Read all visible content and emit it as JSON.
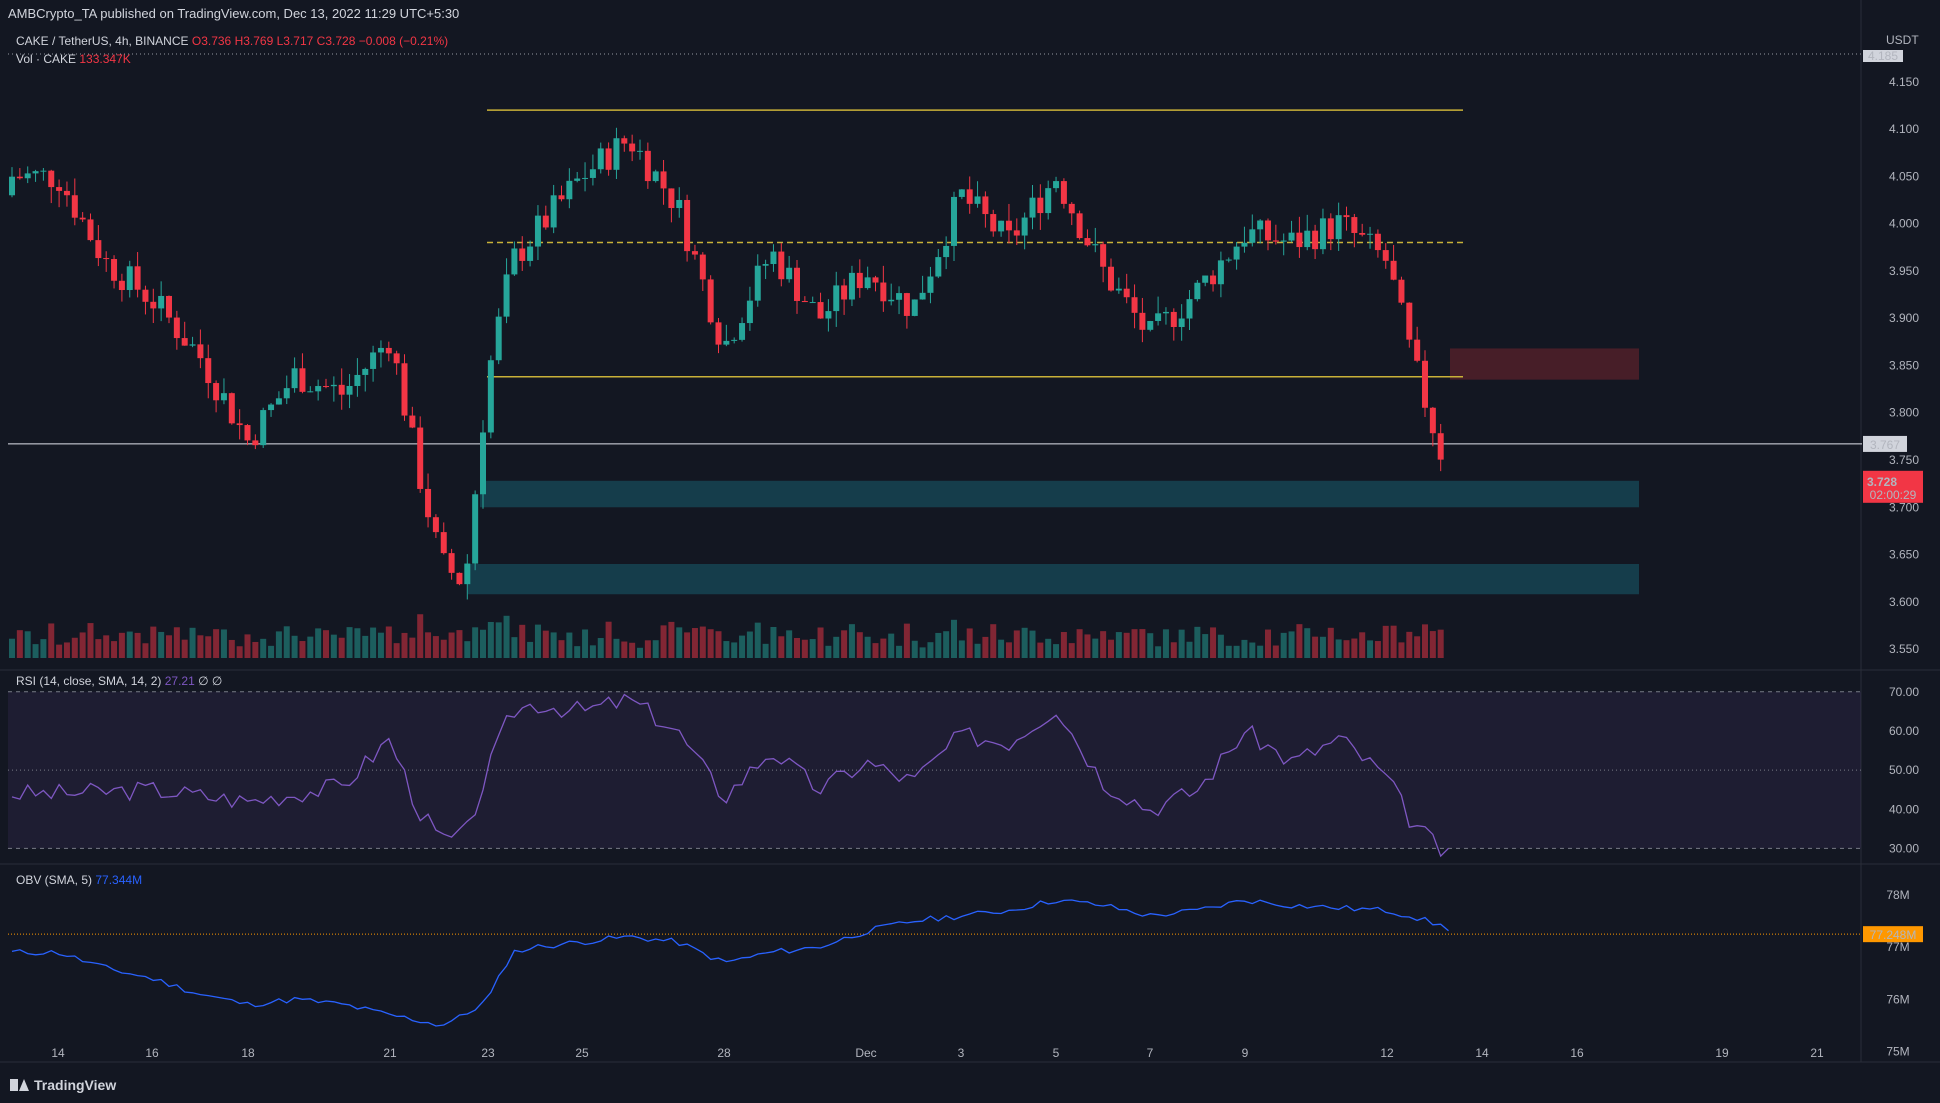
{
  "header": {
    "publisher": "AMBCrypto_TA published on TradingView.com, Dec 13, 2022 11:29 UTC+5:30"
  },
  "symbol": {
    "pair": "CAKE / TetherUS, 4h, BINANCE",
    "open": "O3.736",
    "high": "H3.769",
    "low": "L3.717",
    "close": "C3.728",
    "change": "−0.008 (−0.21%)"
  },
  "volume": {
    "label": "Vol · CAKE",
    "value": "133.347K"
  },
  "rsi": {
    "label": "RSI (14, close, SMA, 14, 2)",
    "value": "27.21",
    "extra": "∅ ∅"
  },
  "obv": {
    "label": "OBV (SMA, 5)",
    "value": "77.344M"
  },
  "footer": {
    "brand": "TradingView"
  },
  "colors": {
    "up": "#26a69a",
    "down": "#f23645",
    "bg": "#131722",
    "yellow": "#c9b138",
    "zone_teal": "#164452",
    "zone_red": "#4a1f29",
    "rsi": "#7e57c2",
    "obv": "#2962ff"
  },
  "chart_data": [
    {
      "type": "candlestick",
      "title": "CAKE / TetherUS, 4h, BINANCE",
      "currency": "USDT",
      "x_ticks": [
        "14",
        "16",
        "18",
        "21",
        "23",
        "25",
        "28",
        "Dec",
        "3",
        "5",
        "7",
        "9",
        "12",
        "14",
        "16",
        "19",
        "21"
      ],
      "y_ticks": [
        "4.150",
        "4.100",
        "4.050",
        "4.000",
        "3.950",
        "3.900",
        "3.850",
        "3.800",
        "3.750",
        "3.700",
        "3.650",
        "3.600",
        "3.550"
      ],
      "ylim": [
        3.53,
        4.19
      ],
      "price_labels": {
        "top": "4.185",
        "level": "3.767",
        "last": "3.728",
        "countdown": "02:00:29"
      },
      "levels": {
        "white_line": 3.767,
        "range_high": 4.12,
        "range_mid": 3.98,
        "range_low": 3.838
      },
      "zones": [
        {
          "name": "bearish order block",
          "low": 3.835,
          "high": 3.868
        },
        {
          "name": "support zone 1",
          "low": 3.7,
          "high": 3.728
        },
        {
          "name": "support zone 2",
          "low": 3.608,
          "high": 3.64
        }
      ],
      "anchors": [
        {
          "x": "14",
          "price": 4.05
        },
        {
          "x": "15",
          "price": 3.96
        },
        {
          "x": "16",
          "price": 3.92
        },
        {
          "x": "17",
          "price": 3.86
        },
        {
          "x": "18",
          "price": 3.77
        },
        {
          "x": "19",
          "price": 3.84
        },
        {
          "x": "20",
          "price": 3.82
        },
        {
          "x": "21",
          "price": 3.88
        },
        {
          "x": "21.5",
          "price": 3.74
        },
        {
          "x": "22",
          "price": 3.64
        },
        {
          "x": "22.5",
          "price": 3.62
        },
        {
          "x": "23",
          "price": 3.84
        },
        {
          "x": "23.5",
          "price": 3.96
        },
        {
          "x": "24",
          "price": 3.99
        },
        {
          "x": "25",
          "price": 4.05
        },
        {
          "x": "26",
          "price": 4.09
        },
        {
          "x": "27",
          "price": 4.02
        },
        {
          "x": "28",
          "price": 3.87
        },
        {
          "x": "29",
          "price": 3.97
        },
        {
          "x": "30",
          "price": 3.9
        },
        {
          "x": "Dec 1",
          "price": 3.95
        },
        {
          "x": "2",
          "price": 3.91
        },
        {
          "x": "3",
          "price": 4.03
        },
        {
          "x": "4",
          "price": 3.98
        },
        {
          "x": "5",
          "price": 4.05
        },
        {
          "x": "6",
          "price": 3.95
        },
        {
          "x": "7",
          "price": 3.88
        },
        {
          "x": "8",
          "price": 3.93
        },
        {
          "x": "9",
          "price": 3.99
        },
        {
          "x": "10",
          "price": 3.98
        },
        {
          "x": "11",
          "price": 4.0
        },
        {
          "x": "12",
          "price": 3.96
        },
        {
          "x": "12.5",
          "price": 3.86
        },
        {
          "x": "13",
          "price": 3.728
        }
      ]
    },
    {
      "type": "line",
      "name": "RSI (14, close, SMA, 14, 2)",
      "y_ticks": [
        "70.00",
        "60.00",
        "50.00",
        "40.00",
        "30.00"
      ],
      "ylim": [
        25,
        73
      ],
      "bands": [
        30,
        50,
        70
      ],
      "anchors": [
        {
          "x": "14",
          "value": 44
        },
        {
          "x": "16",
          "value": 45
        },
        {
          "x": "18",
          "value": 42
        },
        {
          "x": "20",
          "value": 46
        },
        {
          "x": "21",
          "value": 58
        },
        {
          "x": "21.5",
          "value": 40
        },
        {
          "x": "22",
          "value": 32
        },
        {
          "x": "22.5",
          "value": 33
        },
        {
          "x": "23",
          "value": 50
        },
        {
          "x": "23.5",
          "value": 65
        },
        {
          "x": "24",
          "value": 67
        },
        {
          "x": "25",
          "value": 65
        },
        {
          "x": "26",
          "value": 68
        },
        {
          "x": "27",
          "value": 60
        },
        {
          "x": "28",
          "value": 43
        },
        {
          "x": "29",
          "value": 55
        },
        {
          "x": "30",
          "value": 45
        },
        {
          "x": "Dec 1",
          "value": 52
        },
        {
          "x": "2",
          "value": 47
        },
        {
          "x": "3",
          "value": 59
        },
        {
          "x": "4",
          "value": 57
        },
        {
          "x": "5",
          "value": 66
        },
        {
          "x": "6",
          "value": 47
        },
        {
          "x": "7",
          "value": 40
        },
        {
          "x": "8",
          "value": 45
        },
        {
          "x": "9",
          "value": 60
        },
        {
          "x": "10",
          "value": 52
        },
        {
          "x": "11",
          "value": 58
        },
        {
          "x": "12",
          "value": 48
        },
        {
          "x": "12.5",
          "value": 37
        },
        {
          "x": "13",
          "value": 27.21
        }
      ]
    },
    {
      "type": "line",
      "name": "OBV (SMA, 5)",
      "y_ticks": [
        "78M",
        "77M",
        "76M",
        "75M"
      ],
      "ylim": [
        74.8,
        78.4
      ],
      "level_label": "77.248M",
      "level": 77.248,
      "anchors": [
        {
          "x": "14",
          "value": 76.9
        },
        {
          "x": "15",
          "value": 76.6
        },
        {
          "x": "16",
          "value": 76.4
        },
        {
          "x": "17",
          "value": 76.1
        },
        {
          "x": "18",
          "value": 75.9
        },
        {
          "x": "19",
          "value": 76.0
        },
        {
          "x": "20",
          "value": 75.9
        },
        {
          "x": "21",
          "value": 75.7
        },
        {
          "x": "21.5",
          "value": 75.6
        },
        {
          "x": "22",
          "value": 75.5
        },
        {
          "x": "22.5",
          "value": 75.7
        },
        {
          "x": "23",
          "value": 76.0
        },
        {
          "x": "23.5",
          "value": 76.9
        },
        {
          "x": "24",
          "value": 77.0
        },
        {
          "x": "25",
          "value": 77.1
        },
        {
          "x": "26",
          "value": 77.2
        },
        {
          "x": "27",
          "value": 77.1
        },
        {
          "x": "28",
          "value": 76.7
        },
        {
          "x": "29",
          "value": 76.9
        },
        {
          "x": "30",
          "value": 77.0
        },
        {
          "x": "Dec 1",
          "value": 77.3
        },
        {
          "x": "2",
          "value": 77.5
        },
        {
          "x": "3",
          "value": 77.6
        },
        {
          "x": "4",
          "value": 77.7
        },
        {
          "x": "5",
          "value": 77.9
        },
        {
          "x": "6",
          "value": 77.8
        },
        {
          "x": "7",
          "value": 77.6
        },
        {
          "x": "8",
          "value": 77.7
        },
        {
          "x": "9",
          "value": 77.9
        },
        {
          "x": "10",
          "value": 77.8
        },
        {
          "x": "11",
          "value": 77.75
        },
        {
          "x": "12",
          "value": 77.7
        },
        {
          "x": "12.5",
          "value": 77.6
        },
        {
          "x": "13",
          "value": 77.35
        }
      ]
    }
  ]
}
